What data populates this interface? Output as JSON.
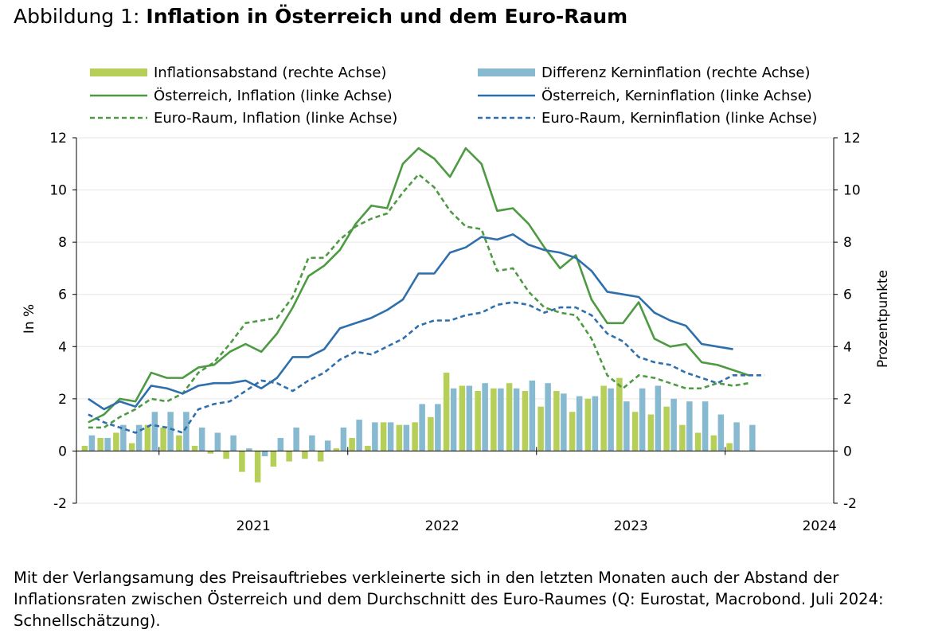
{
  "figure_title": {
    "prefix": "Abbildung 1:",
    "main": "Inflation in Österreich und dem Euro-Raum"
  },
  "caption": "Mit der Verlangsamung des Preisauftriebes verkleinerte sich in den letzten Monaten auch der Abstand der Inflationsraten zwischen Österreich und dem Durchschnitt des Euro-Raumes (Q: Eurostat, Macrobond. Juli 2024: Schnellschätzung).",
  "colors": {
    "green_bar": "#b5cf58",
    "blue_bar": "#87bad0",
    "green_line": "#4e9a43",
    "blue_line": "#2f6fac",
    "grid": "#e6e6e6",
    "axis": "#000000"
  },
  "chart_data": {
    "type": "bar+line",
    "title": "Inflation in Österreich und dem Euro-Raum",
    "ylabel_left": "In %",
    "ylabel_right": "Prozentpunkte",
    "ylim_left": [
      -2,
      12
    ],
    "ylim_right": [
      -2,
      12
    ],
    "yticks": [
      -2,
      0,
      2,
      4,
      6,
      8,
      10,
      12
    ],
    "year_labels": [
      "2021",
      "2022",
      "2023",
      "2024"
    ],
    "months": [
      "2020-08",
      "2020-09",
      "2020-10",
      "2020-11",
      "2020-12",
      "2021-01",
      "2021-02",
      "2021-03",
      "2021-04",
      "2021-05",
      "2021-06",
      "2021-07",
      "2021-08",
      "2021-09",
      "2021-10",
      "2021-11",
      "2021-12",
      "2022-01",
      "2022-02",
      "2022-03",
      "2022-04",
      "2022-05",
      "2022-06",
      "2022-07",
      "2022-08",
      "2022-09",
      "2022-10",
      "2022-11",
      "2022-12",
      "2023-01",
      "2023-02",
      "2023-03",
      "2023-04",
      "2023-05",
      "2023-06",
      "2023-07",
      "2023-08",
      "2023-09",
      "2023-10",
      "2023-11",
      "2023-12",
      "2024-01",
      "2024-02",
      "2024-03",
      "2024-04",
      "2024-05",
      "2024-06",
      "2024-07"
    ],
    "series": [
      {
        "name": "Inflationsabstand (rechte Achse)",
        "kind": "bar",
        "axis": "right",
        "color": "#b5cf58",
        "values": [
          0.2,
          0.5,
          0.7,
          0.3,
          1.0,
          0.9,
          0.6,
          0.2,
          -0.1,
          -0.3,
          -0.8,
          -1.2,
          -0.6,
          -0.4,
          -0.3,
          -0.4,
          0.1,
          0.5,
          0.2,
          1.1,
          1.0,
          1.1,
          1.3,
          3.0,
          2.5,
          2.3,
          2.4,
          2.6,
          2.3,
          1.7,
          2.3,
          1.5,
          2.0,
          2.5,
          2.8,
          1.5,
          1.4,
          1.7,
          1.0,
          0.7,
          0.6,
          0.3,
          null,
          null,
          null,
          null,
          null,
          null
        ]
      },
      {
        "name": "Differenz Kerninflation (rechte Achse)",
        "kind": "bar",
        "axis": "right",
        "color": "#87bad0",
        "values": [
          0.6,
          0.5,
          1.0,
          1.0,
          1.5,
          1.5,
          1.5,
          0.9,
          0.7,
          0.6,
          0.1,
          -0.2,
          0.5,
          0.9,
          0.6,
          0.4,
          0.9,
          1.2,
          1.1,
          1.1,
          1.0,
          1.8,
          1.8,
          2.4,
          2.5,
          2.6,
          2.4,
          2.4,
          2.7,
          2.6,
          2.2,
          2.1,
          2.1,
          2.4,
          1.9,
          2.4,
          2.5,
          2.0,
          1.9,
          1.9,
          1.4,
          1.1,
          1.0,
          null,
          null,
          null,
          null,
          null
        ]
      },
      {
        "name": "Österreich, Inflation (linke Achse)",
        "kind": "line",
        "axis": "left",
        "color": "#4e9a43",
        "dash": "solid",
        "values": [
          1.1,
          1.4,
          2.0,
          1.9,
          3.0,
          2.8,
          2.8,
          3.2,
          3.3,
          3.8,
          4.1,
          3.8,
          4.5,
          5.5,
          6.7,
          7.1,
          7.7,
          8.7,
          9.4,
          9.3,
          11.0,
          11.6,
          11.2,
          10.5,
          11.6,
          11.0,
          9.2,
          9.3,
          8.7,
          7.8,
          7.0,
          7.5,
          5.8,
          4.9,
          4.9,
          5.7,
          4.3,
          4.0,
          4.1,
          3.4,
          3.3,
          3.1,
          2.9,
          null,
          null,
          null,
          null,
          null
        ]
      },
      {
        "name": "Euro-Raum, Inflation (linke Achse)",
        "kind": "line",
        "axis": "left",
        "color": "#4e9a43",
        "dash": "dashed",
        "values": [
          0.9,
          0.9,
          1.3,
          1.6,
          2.0,
          1.9,
          2.2,
          3.0,
          3.4,
          4.1,
          4.9,
          5.0,
          5.1,
          5.9,
          7.4,
          7.4,
          8.1,
          8.6,
          8.9,
          9.1,
          9.9,
          10.6,
          10.1,
          9.2,
          8.6,
          8.5,
          6.9,
          7.0,
          6.1,
          5.5,
          5.3,
          5.2,
          4.3,
          2.9,
          2.4,
          2.9,
          2.8,
          2.6,
          2.4,
          2.4,
          2.6,
          2.5,
          2.6,
          null,
          null,
          null,
          null,
          null
        ]
      },
      {
        "name": "Österreich, Kerninflation (linke Achse)",
        "kind": "line",
        "axis": "left",
        "color": "#2f6fac",
        "dash": "solid",
        "values": [
          2.0,
          1.6,
          1.9,
          1.7,
          2.5,
          2.4,
          2.2,
          2.5,
          2.6,
          2.6,
          2.7,
          2.4,
          2.8,
          3.6,
          3.6,
          3.9,
          4.7,
          4.9,
          5.1,
          5.4,
          5.8,
          6.8,
          6.8,
          7.6,
          7.8,
          8.2,
          8.1,
          8.3,
          7.9,
          7.7,
          7.6,
          7.4,
          6.9,
          6.1,
          6.0,
          5.9,
          5.3,
          5.0,
          4.8,
          4.1,
          4.0,
          3.9,
          null,
          null,
          null,
          null,
          null,
          null
        ]
      },
      {
        "name": "Euro-Raum, Kerninflation (linke Achse)",
        "kind": "line",
        "axis": "left",
        "color": "#2f6fac",
        "dash": "dashed",
        "values": [
          1.4,
          1.1,
          0.9,
          0.7,
          1.0,
          0.9,
          0.7,
          1.6,
          1.8,
          1.9,
          2.3,
          2.7,
          2.6,
          2.3,
          2.7,
          3.0,
          3.5,
          3.8,
          3.7,
          4.0,
          4.3,
          4.8,
          5.0,
          5.0,
          5.2,
          5.3,
          5.6,
          5.7,
          5.6,
          5.3,
          5.5,
          5.5,
          5.2,
          4.5,
          4.2,
          3.6,
          3.4,
          3.3,
          3.0,
          2.8,
          2.6,
          2.9,
          2.9,
          2.9,
          null,
          null,
          null,
          null
        ]
      }
    ]
  }
}
